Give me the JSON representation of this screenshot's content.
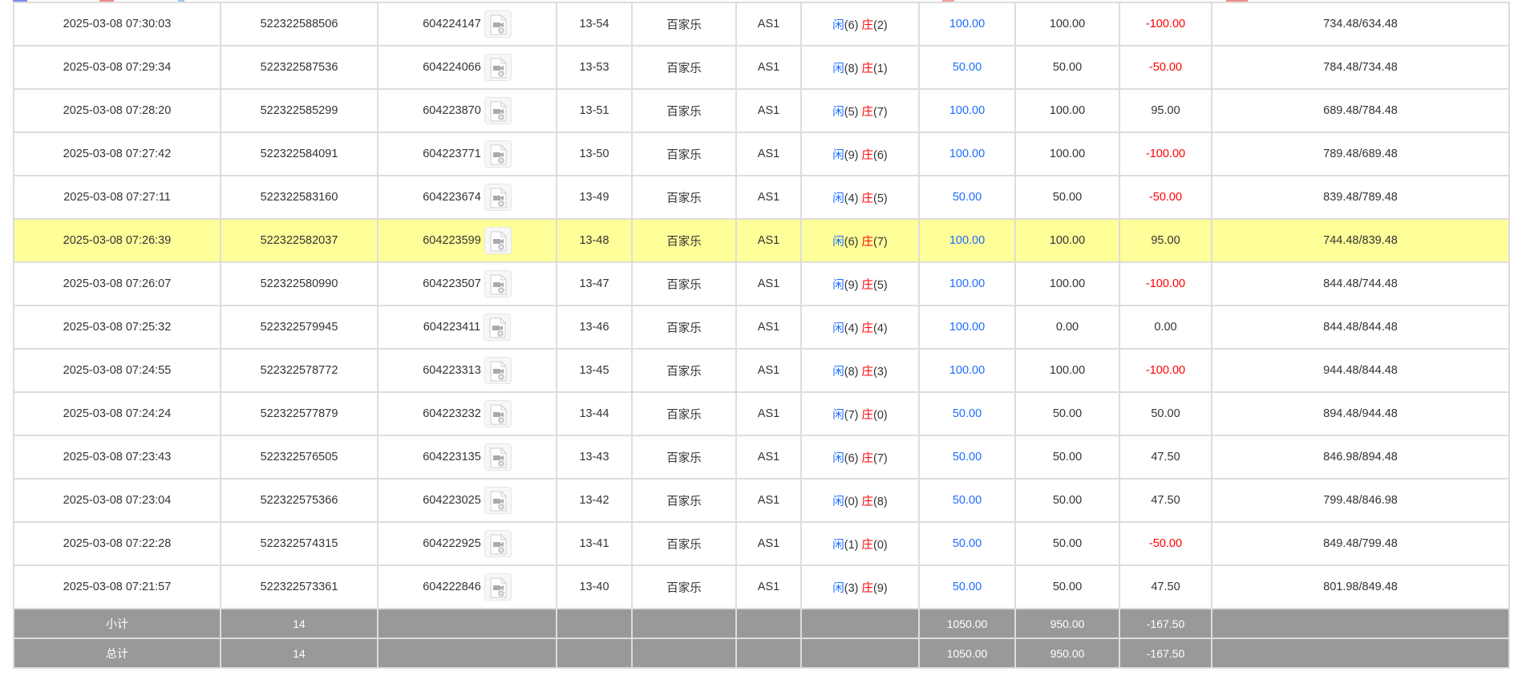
{
  "top_strips": [
    {
      "color": "#7b8cf0"
    },
    {
      "color": "#f08a8a"
    },
    {
      "color": "#9cc4f5"
    },
    {
      "color": "#f0a0a0"
    },
    {
      "color": "#f08a8a"
    }
  ],
  "colors": {
    "player": "#1e6cff",
    "banker": "#ff0000",
    "highlight": "#ffff99",
    "footer": "#999999"
  },
  "rows": [
    {
      "time": "2025-03-08 07:30:03",
      "order": "522322588506",
      "round": "604224147",
      "table_no": "13-54",
      "game": "百家乐",
      "room": "AS1",
      "p": "闲",
      "pv": "(6)",
      "b": "庄",
      "bv": "(2)",
      "bet": "100.00",
      "valid": "100.00",
      "win": "-100.00",
      "win_neg": true,
      "balance": "734.48/634.48"
    },
    {
      "time": "2025-03-08 07:29:34",
      "order": "522322587536",
      "round": "604224066",
      "table_no": "13-53",
      "game": "百家乐",
      "room": "AS1",
      "p": "闲",
      "pv": "(8)",
      "b": "庄",
      "bv": "(1)",
      "bet": "50.00",
      "valid": "50.00",
      "win": "-50.00",
      "win_neg": true,
      "balance": "784.48/734.48"
    },
    {
      "time": "2025-03-08 07:28:20",
      "order": "522322585299",
      "round": "604223870",
      "table_no": "13-51",
      "game": "百家乐",
      "room": "AS1",
      "p": "闲",
      "pv": "(5)",
      "b": "庄",
      "bv": "(7)",
      "bet": "100.00",
      "valid": "100.00",
      "win": "95.00",
      "win_neg": false,
      "balance": "689.48/784.48"
    },
    {
      "time": "2025-03-08 07:27:42",
      "order": "522322584091",
      "round": "604223771",
      "table_no": "13-50",
      "game": "百家乐",
      "room": "AS1",
      "p": "闲",
      "pv": "(9)",
      "b": "庄",
      "bv": "(6)",
      "bet": "100.00",
      "valid": "100.00",
      "win": "-100.00",
      "win_neg": true,
      "balance": "789.48/689.48"
    },
    {
      "time": "2025-03-08 07:27:11",
      "order": "522322583160",
      "round": "604223674",
      "table_no": "13-49",
      "game": "百家乐",
      "room": "AS1",
      "p": "闲",
      "pv": "(4)",
      "b": "庄",
      "bv": "(5)",
      "bet": "50.00",
      "valid": "50.00",
      "win": "-50.00",
      "win_neg": true,
      "balance": "839.48/789.48"
    },
    {
      "time": "2025-03-08 07:26:39",
      "order": "522322582037",
      "round": "604223599",
      "table_no": "13-48",
      "game": "百家乐",
      "room": "AS1",
      "p": "闲",
      "pv": "(6)",
      "b": "庄",
      "bv": "(7)",
      "bet": "100.00",
      "valid": "100.00",
      "win": "95.00",
      "win_neg": false,
      "balance": "744.48/839.48",
      "highlighted": true
    },
    {
      "time": "2025-03-08 07:26:07",
      "order": "522322580990",
      "round": "604223507",
      "table_no": "13-47",
      "game": "百家乐",
      "room": "AS1",
      "p": "闲",
      "pv": "(9)",
      "b": "庄",
      "bv": "(5)",
      "bet": "100.00",
      "valid": "100.00",
      "win": "-100.00",
      "win_neg": true,
      "balance": "844.48/744.48"
    },
    {
      "time": "2025-03-08 07:25:32",
      "order": "522322579945",
      "round": "604223411",
      "table_no": "13-46",
      "game": "百家乐",
      "room": "AS1",
      "p": "闲",
      "pv": "(4)",
      "b": "庄",
      "bv": "(4)",
      "bet": "100.00",
      "valid": "0.00",
      "win": "0.00",
      "win_neg": false,
      "balance": "844.48/844.48"
    },
    {
      "time": "2025-03-08 07:24:55",
      "order": "522322578772",
      "round": "604223313",
      "table_no": "13-45",
      "game": "百家乐",
      "room": "AS1",
      "p": "闲",
      "pv": "(8)",
      "b": "庄",
      "bv": "(3)",
      "bet": "100.00",
      "valid": "100.00",
      "win": "-100.00",
      "win_neg": true,
      "balance": "944.48/844.48"
    },
    {
      "time": "2025-03-08 07:24:24",
      "order": "522322577879",
      "round": "604223232",
      "table_no": "13-44",
      "game": "百家乐",
      "room": "AS1",
      "p": "闲",
      "pv": "(7)",
      "b": "庄",
      "bv": "(0)",
      "bet": "50.00",
      "valid": "50.00",
      "win": "50.00",
      "win_neg": false,
      "balance": "894.48/944.48"
    },
    {
      "time": "2025-03-08 07:23:43",
      "order": "522322576505",
      "round": "604223135",
      "table_no": "13-43",
      "game": "百家乐",
      "room": "AS1",
      "p": "闲",
      "pv": "(6)",
      "b": "庄",
      "bv": "(7)",
      "bet": "50.00",
      "valid": "50.00",
      "win": "47.50",
      "win_neg": false,
      "balance": "846.98/894.48"
    },
    {
      "time": "2025-03-08 07:23:04",
      "order": "522322575366",
      "round": "604223025",
      "table_no": "13-42",
      "game": "百家乐",
      "room": "AS1",
      "p": "闲",
      "pv": "(0)",
      "b": "庄",
      "bv": "(8)",
      "bet": "50.00",
      "valid": "50.00",
      "win": "47.50",
      "win_neg": false,
      "balance": "799.48/846.98"
    },
    {
      "time": "2025-03-08 07:22:28",
      "order": "522322574315",
      "round": "604222925",
      "table_no": "13-41",
      "game": "百家乐",
      "room": "AS1",
      "p": "闲",
      "pv": "(1)",
      "b": "庄",
      "bv": "(0)",
      "bet": "50.00",
      "valid": "50.00",
      "win": "-50.00",
      "win_neg": true,
      "balance": "849.48/799.48"
    },
    {
      "time": "2025-03-08 07:21:57",
      "order": "522322573361",
      "round": "604222846",
      "table_no": "13-40",
      "game": "百家乐",
      "room": "AS1",
      "p": "闲",
      "pv": "(3)",
      "b": "庄",
      "bv": "(9)",
      "bet": "50.00",
      "valid": "50.00",
      "win": "47.50",
      "win_neg": false,
      "balance": "801.98/849.48"
    }
  ],
  "footer": [
    {
      "label": "小计",
      "count": "14",
      "bet": "1050.00",
      "valid": "950.00",
      "win": "-167.50"
    },
    {
      "label": "总计",
      "count": "14",
      "bet": "1050.00",
      "valid": "950.00",
      "win": "-167.50"
    }
  ]
}
